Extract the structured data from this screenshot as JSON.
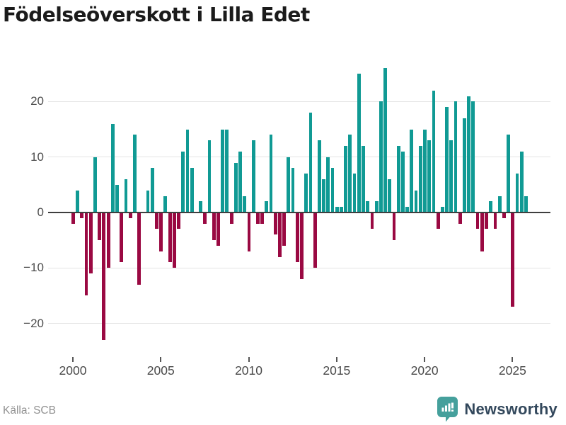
{
  "title": "Födelseöverskott i Lilla Edet",
  "source": "Källa: SCB",
  "branding": {
    "logo_text": "Newsworthy",
    "logo_icon": "speech-bubble-bar-chart-icon",
    "logo_icon_color": "#45a09c",
    "logo_text_color": "#33485c"
  },
  "colors": {
    "positive_bar": "#109a94",
    "negative_bar": "#9a0942",
    "gridline": "#e4e4e4",
    "zero_axis": "#3f3f3f",
    "tick_label": "#4a4a4a"
  },
  "chart_data": {
    "type": "bar",
    "title": "Födelseöverskott i Lilla Edet",
    "x_frequency": "quarterly",
    "x_start": "2000-Q1",
    "x_end": "2025-Q4",
    "x_ticks": [
      2000,
      2005,
      2010,
      2015,
      2020,
      2025
    ],
    "y_ticks": [
      20,
      10,
      0,
      -10,
      -20
    ],
    "ylim": [
      -25,
      27
    ],
    "grid": true,
    "values": [
      -2,
      4,
      -1,
      -15,
      -11,
      10,
      -5,
      -23,
      -10,
      16,
      5,
      -9,
      6,
      -1,
      14,
      -13,
      0,
      4,
      8,
      -3,
      -7,
      3,
      -9,
      -10,
      -3,
      11,
      15,
      8,
      0,
      2,
      -2,
      13,
      -5,
      -6,
      15,
      15,
      -2,
      9,
      11,
      3,
      -7,
      13,
      -2,
      -2,
      2,
      14,
      -4,
      -8,
      -6,
      10,
      8,
      -9,
      -12,
      7,
      18,
      -10,
      13,
      6,
      10,
      8,
      1,
      1,
      12,
      14,
      7,
      25,
      12,
      2,
      -3,
      2,
      20,
      26,
      6,
      -5,
      12,
      11,
      1,
      15,
      4,
      12,
      15,
      13,
      22,
      -3,
      1,
      19,
      13,
      20,
      -2,
      17,
      21,
      20,
      -3,
      -7,
      -3,
      2,
      -3,
      3,
      -1,
      14,
      -17,
      7,
      11,
      3
    ]
  }
}
